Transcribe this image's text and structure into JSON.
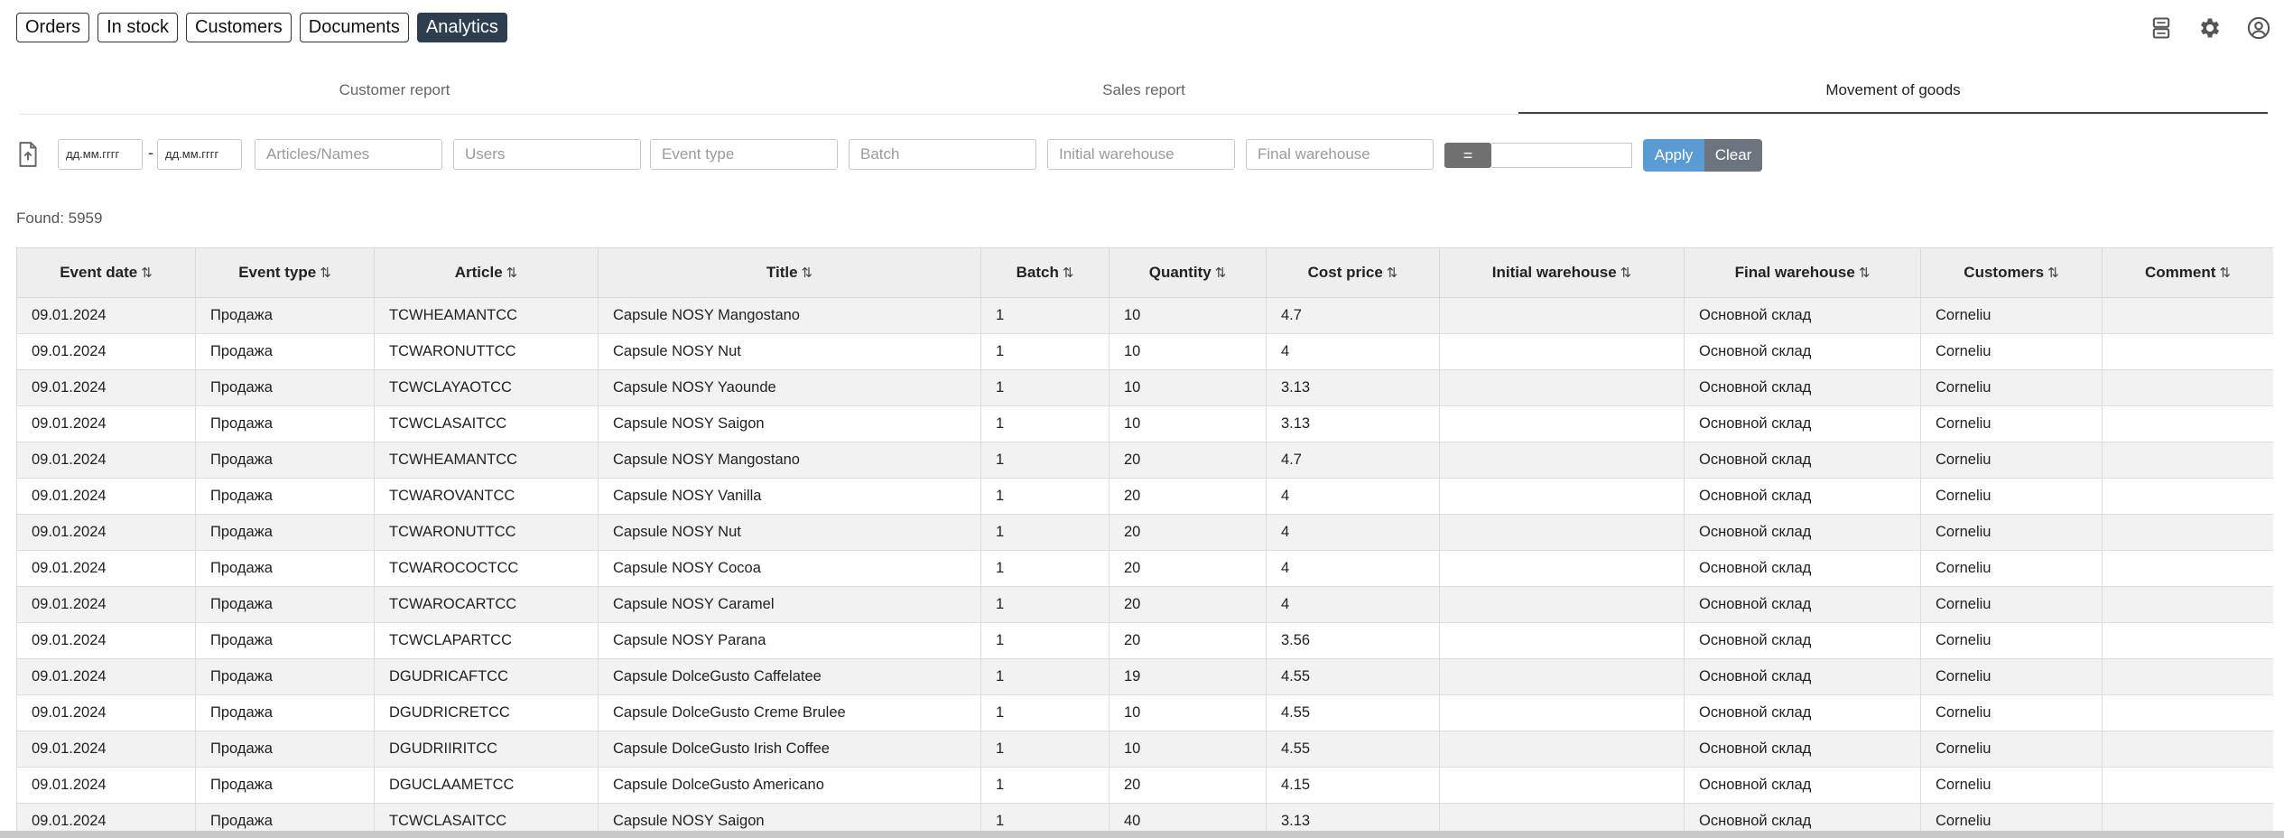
{
  "nav": {
    "buttons": [
      {
        "label": "Orders"
      },
      {
        "label": "In stock"
      },
      {
        "label": "Customers"
      },
      {
        "label": "Documents"
      },
      {
        "label": "Analytics",
        "active": true
      }
    ],
    "icons": [
      "server-icon",
      "gear-icon",
      "user-circle-icon"
    ]
  },
  "tabs": [
    {
      "label": "Customer report"
    },
    {
      "label": "Sales report"
    },
    {
      "label": "Movement of goods",
      "active": true
    }
  ],
  "filters": {
    "date_from": "дд.мм.гггг",
    "date_to": "дд.мм.гггг",
    "date_separator": "-",
    "articles_placeholder": "Articles/Names",
    "users_placeholder": "Users",
    "event_type_placeholder": "Event type",
    "batch_placeholder": "Batch",
    "initial_warehouse_placeholder": "Initial warehouse",
    "final_warehouse_placeholder": "Final warehouse",
    "operator": "=",
    "apply_label": "Apply",
    "clear_label": "Clear"
  },
  "found": "Found: 5959",
  "table": {
    "sort_glyph": "⇅",
    "columns": [
      "Event date",
      "Event type",
      "Article",
      "Title",
      "Batch",
      "Quantity",
      "Cost price",
      "Initial warehouse",
      "Final warehouse",
      "Customers",
      "Comment"
    ],
    "rows": [
      [
        "09.01.2024",
        "Продажа",
        "TCWHEAMANTCC",
        "Capsule NOSY Mangostano",
        "1",
        "10",
        "4.7",
        "",
        "Основной склад",
        "Corneliu",
        ""
      ],
      [
        "09.01.2024",
        "Продажа",
        "TCWARONUTTCC",
        "Capsule NOSY Nut",
        "1",
        "10",
        "4",
        "",
        "Основной склад",
        "Corneliu",
        ""
      ],
      [
        "09.01.2024",
        "Продажа",
        "TCWCLAYAOTCC",
        "Capsule NOSY Yaounde",
        "1",
        "10",
        "3.13",
        "",
        "Основной склад",
        "Corneliu",
        ""
      ],
      [
        "09.01.2024",
        "Продажа",
        "TCWCLASAITCC",
        "Capsule NOSY Saigon",
        "1",
        "10",
        "3.13",
        "",
        "Основной склад",
        "Corneliu",
        ""
      ],
      [
        "09.01.2024",
        "Продажа",
        "TCWHEAMANTCC",
        "Capsule NOSY Mangostano",
        "1",
        "20",
        "4.7",
        "",
        "Основной склад",
        "Corneliu",
        ""
      ],
      [
        "09.01.2024",
        "Продажа",
        "TCWAROVANTCC",
        "Capsule NOSY Vanilla",
        "1",
        "20",
        "4",
        "",
        "Основной склад",
        "Corneliu",
        ""
      ],
      [
        "09.01.2024",
        "Продажа",
        "TCWARONUTTCC",
        "Capsule NOSY Nut",
        "1",
        "20",
        "4",
        "",
        "Основной склад",
        "Corneliu",
        ""
      ],
      [
        "09.01.2024",
        "Продажа",
        "TCWAROCOCTCC",
        "Capsule NOSY Cocoa",
        "1",
        "20",
        "4",
        "",
        "Основной склад",
        "Corneliu",
        ""
      ],
      [
        "09.01.2024",
        "Продажа",
        "TCWAROCARTCC",
        "Capsule NOSY Caramel",
        "1",
        "20",
        "4",
        "",
        "Основной склад",
        "Corneliu",
        ""
      ],
      [
        "09.01.2024",
        "Продажа",
        "TCWCLAPARTCC",
        "Capsule NOSY Parana",
        "1",
        "20",
        "3.56",
        "",
        "Основной склад",
        "Corneliu",
        ""
      ],
      [
        "09.01.2024",
        "Продажа",
        "DGUDRICAFTCC",
        "Capsule DolceGusto Caffelatee",
        "1",
        "19",
        "4.55",
        "",
        "Основной склад",
        "Corneliu",
        ""
      ],
      [
        "09.01.2024",
        "Продажа",
        "DGUDRICRETCC",
        "Capsule DolceGusto Creme Brulee",
        "1",
        "10",
        "4.55",
        "",
        "Основной склад",
        "Corneliu",
        ""
      ],
      [
        "09.01.2024",
        "Продажа",
        "DGUDRIIRITCC",
        "Capsule DolceGusto Irish Coffee",
        "1",
        "10",
        "4.55",
        "",
        "Основной склад",
        "Corneliu",
        ""
      ],
      [
        "09.01.2024",
        "Продажа",
        "DGUCLAAMETCC",
        "Capsule DolceGusto Americano",
        "1",
        "20",
        "4.15",
        "",
        "Основной склад",
        "Corneliu",
        ""
      ],
      [
        "09.01.2024",
        "Продажа",
        "TCWCLASAITCC",
        "Capsule NOSY Saigon",
        "1",
        "40",
        "3.13",
        "",
        "Основной склад",
        "Corneliu",
        ""
      ]
    ]
  },
  "colors": {
    "active_nav": "#2c3e50",
    "apply": "#5b9bd5",
    "clear": "#6c757d",
    "operator": "#707070"
  }
}
